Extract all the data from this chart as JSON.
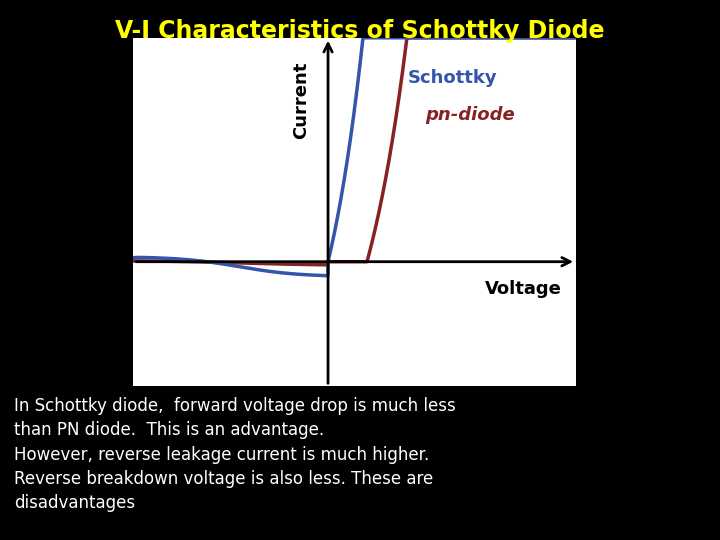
{
  "bg_color": "#000000",
  "title": "V-I Characteristics of Schottky Diode",
  "title_color": "#ffff00",
  "title_fontsize": 17,
  "plot_bg_color": "#ffffff",
  "schottky_color": "#3355aa",
  "pn_color": "#882222",
  "schottky_label": "Schottky",
  "pn_label": "pn-diode",
  "xlabel": "Voltage",
  "ylabel": "Current",
  "body_text_lines": [
    "In Schottky diode,  forward voltage drop is much less",
    "than PN diode.  This is an advantage.",
    "However, reverse leakage current is much higher.",
    "Reverse breakdown voltage is also less. These are",
    "disadvantages"
  ],
  "body_text_color": "#ffffff",
  "body_text_fontsize": 12
}
